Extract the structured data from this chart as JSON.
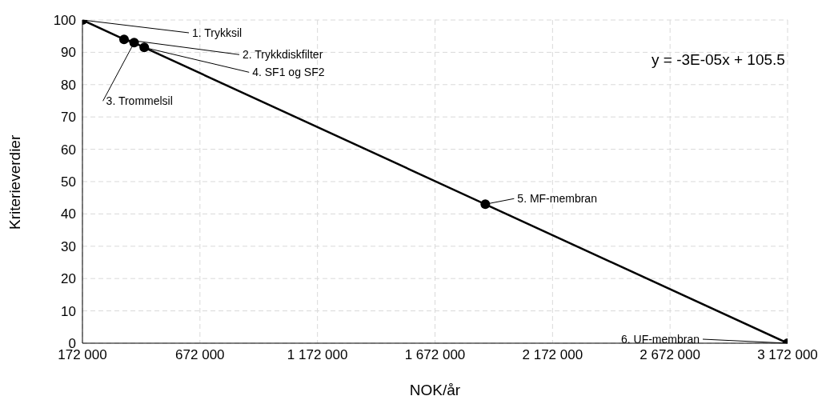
{
  "chart_data": {
    "type": "line",
    "xlabel": "NOK/år",
    "ylabel": "Kriterieverdier",
    "x": [
      172000,
      349000,
      392000,
      435000,
      1886000,
      3172000
    ],
    "series": [
      {
        "color": "#000000",
        "values": [
          100,
          94,
          93,
          91.5,
          43,
          0
        ]
      }
    ],
    "xlim": [
      172000,
      3172000
    ],
    "xticks": [
      172000,
      672000,
      1172000,
      1672000,
      2172000,
      2672000,
      3172000
    ],
    "ylim": [
      0,
      100
    ],
    "yticks": [
      0,
      10,
      20,
      30,
      40,
      50,
      60,
      70,
      80,
      90,
      100
    ],
    "grid": true,
    "marker": "circle",
    "line_style": "solid",
    "annotations": [
      {
        "text": "1. Trykksil",
        "x": 172000,
        "y": 100
      },
      {
        "text": "2. Trykkdiskfilter",
        "x": 349000,
        "y": 94
      },
      {
        "text": "3. Trommelsil",
        "x": 392000,
        "y": 93
      },
      {
        "text": "4. SF1 og SF2",
        "x": 435000,
        "y": 91.5
      },
      {
        "text": "5. MF-membran",
        "x": 1886000,
        "y": 43
      },
      {
        "text": "6. UF-membran",
        "x": 3172000,
        "y": 0
      },
      "y = -3E-05x + 105.5"
    ]
  }
}
